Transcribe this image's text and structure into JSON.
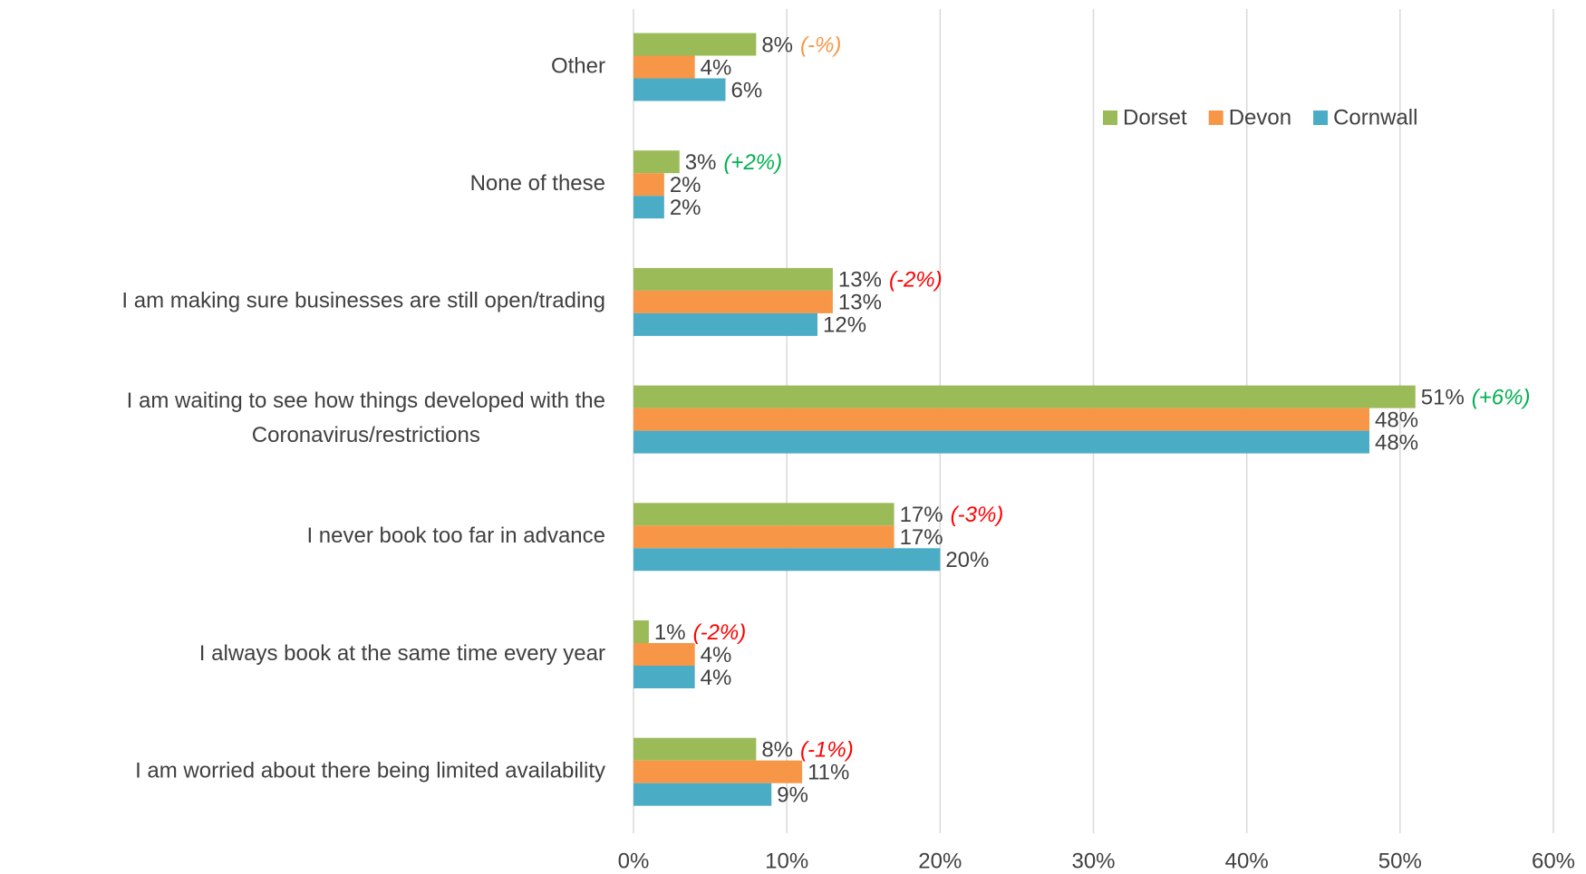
{
  "chart_data": {
    "type": "hbar",
    "categories": [
      "Other",
      "None of these",
      "I am making sure businesses are still open/trading",
      "I am waiting to see how things developed with the Coronavirus/restrictions",
      "I never book too far in advance",
      "I always book at the same time every year",
      "I am worried about there being limited availability"
    ],
    "series": [
      {
        "name": "Dorset",
        "color": "#9bbb59",
        "values": [
          8,
          3,
          13,
          51,
          17,
          1,
          8
        ],
        "value_labels": [
          "8%",
          "3%",
          "13%",
          "51%",
          "17%",
          "1%",
          "8%"
        ]
      },
      {
        "name": "Devon",
        "color": "#f79646",
        "values": [
          4,
          2,
          13,
          48,
          17,
          4,
          11
        ],
        "value_labels": [
          "4%",
          "2%",
          "13%",
          "48%",
          "17%",
          "4%",
          "11%"
        ]
      },
      {
        "name": "Cornwall",
        "color": "#4bacc6",
        "values": [
          6,
          2,
          12,
          48,
          20,
          4,
          9
        ],
        "value_labels": [
          "6%",
          "2%",
          "12%",
          "48%",
          "20%",
          "4%",
          "9%"
        ]
      }
    ],
    "annotations": [
      "(-%)",
      "(+2%)",
      "(-2%)",
      "(+6%)",
      "(-3%)",
      "(-2%)",
      "(-1%)"
    ],
    "annotation_colors": [
      "#f79646",
      "#00b050",
      "#ff0000",
      "#00b050",
      "#ff0000",
      "#ff0000",
      "#ff0000"
    ],
    "xlim": [
      0,
      60
    ],
    "xticks": [
      {
        "value": 0,
        "label": "0%"
      },
      {
        "value": 10,
        "label": "10%"
      },
      {
        "value": 20,
        "label": "20%"
      },
      {
        "value": 30,
        "label": "30%"
      },
      {
        "value": 40,
        "label": "40%"
      },
      {
        "value": 50,
        "label": "50%"
      },
      {
        "value": 60,
        "label": "60%"
      }
    ],
    "grid": true,
    "legend": "top-right"
  }
}
